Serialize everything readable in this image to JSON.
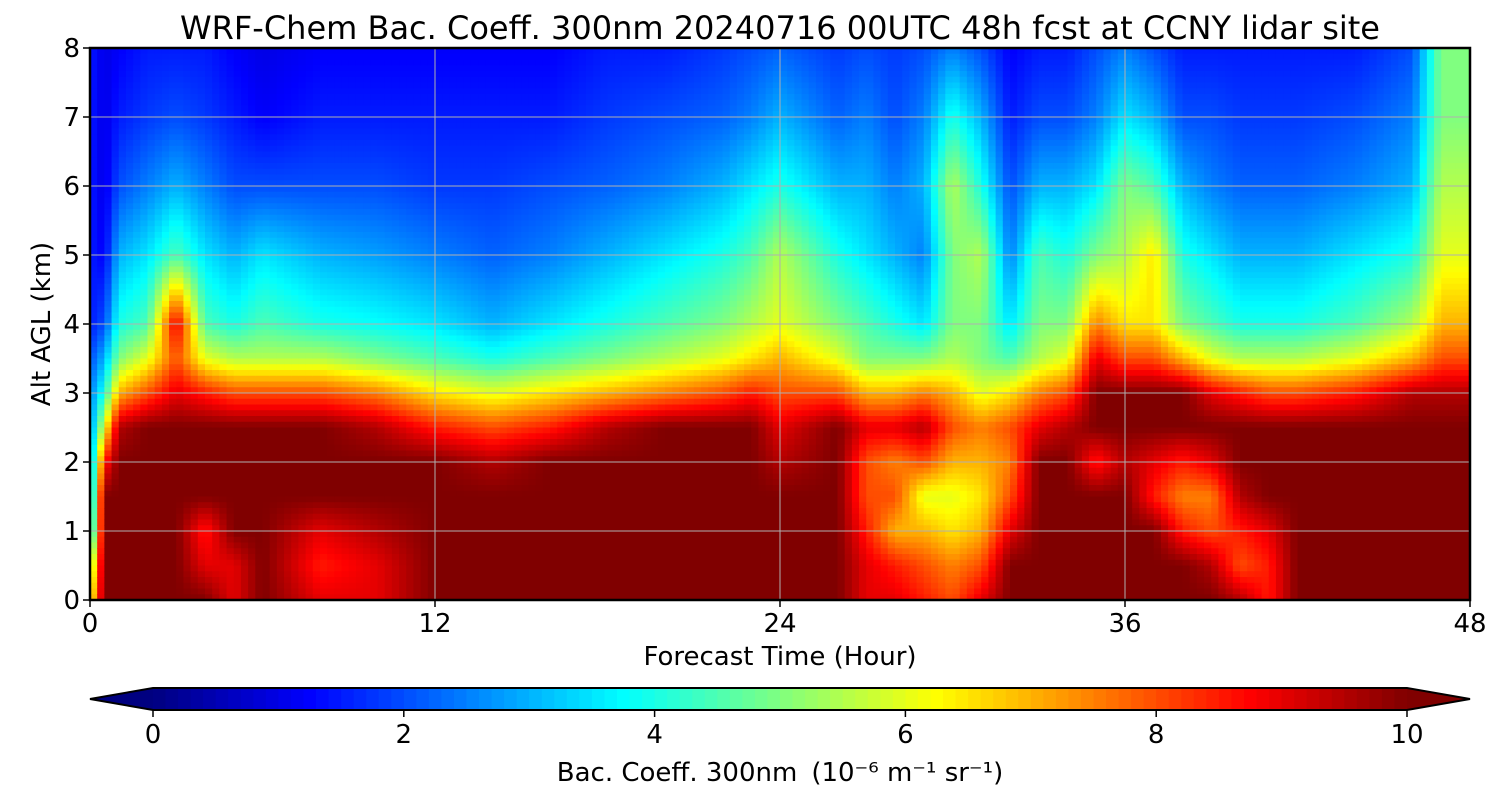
{
  "chart_data": {
    "type": "heatmap",
    "title": "WRF-Chem Bac. Coeff. 300nm  20240716 00UTC 48h fcst at CCNY lidar site",
    "xlabel": "Forecast Time (Hour)",
    "ylabel": "Alt AGL (km)",
    "xlim": [
      0,
      48
    ],
    "ylim": [
      0,
      8
    ],
    "xticks": [
      0,
      12,
      24,
      36,
      48
    ],
    "yticks": [
      0,
      1,
      2,
      3,
      4,
      5,
      6,
      7,
      8
    ],
    "grid": true,
    "colormap": "jet",
    "colorbar": {
      "label": "Bac. Coeff. 300nm",
      "units": "(10⁻⁶ m⁻¹ sr⁻¹)",
      "range": [
        0,
        10
      ],
      "ticks": [
        0,
        2,
        4,
        6,
        8,
        10
      ],
      "extend": "both",
      "placement": "bottom"
    },
    "profiles": {
      "time": [
        0,
        0.5,
        1,
        2,
        3,
        4,
        5,
        6,
        8,
        10,
        12,
        14,
        16,
        18,
        20,
        22,
        23,
        24,
        26,
        27,
        28,
        29,
        30,
        31,
        32,
        33,
        34,
        35,
        36,
        37,
        38,
        39,
        40,
        41,
        42,
        44,
        46,
        47,
        48
      ],
      "altitude_km": [
        0,
        0.5,
        1,
        1.5,
        2,
        2.5,
        3,
        3.5,
        4,
        5,
        6,
        7,
        8
      ],
      "values": [
        [
          6,
          5,
          3,
          2.5,
          2.5,
          2.5,
          2.5,
          2,
          1.5,
          1.5,
          1.5,
          1.5,
          1.5
        ],
        [
          10,
          10,
          10,
          10,
          8.5,
          6,
          4,
          3,
          2,
          1.2,
          1,
          1,
          1
        ],
        [
          10,
          10,
          10,
          10,
          10,
          9.5,
          7,
          5,
          4,
          3,
          2,
          1.5,
          1.2
        ],
        [
          10,
          10,
          10,
          10,
          10,
          10,
          8,
          6,
          4.5,
          3.5,
          2.5,
          1.8,
          1.5
        ],
        [
          10,
          10,
          10,
          10,
          10,
          10,
          9,
          8,
          9,
          4.5,
          3,
          2,
          1.5
        ],
        [
          10,
          9,
          8.5,
          10,
          10,
          10,
          8.5,
          6,
          4.5,
          3.5,
          2.5,
          1.8,
          1.5
        ],
        [
          9,
          9,
          10,
          10,
          10,
          10,
          8,
          5.5,
          4,
          3,
          2,
          1.5,
          1.2
        ],
        [
          10,
          10,
          10,
          10,
          10,
          10,
          8,
          5.5,
          4.5,
          3.5,
          2,
          1.2,
          1
        ],
        [
          9,
          8.5,
          9,
          10,
          10,
          10,
          8,
          5.5,
          4,
          3,
          2,
          1.5,
          1.2
        ],
        [
          9,
          9,
          9.5,
          10,
          10,
          9.5,
          7.5,
          5,
          3.8,
          2.8,
          2,
          1.5,
          1.2
        ],
        [
          10,
          10,
          10,
          10,
          10,
          8.5,
          6.5,
          4.5,
          3.5,
          2.5,
          1.8,
          1.5,
          1.2
        ],
        [
          10,
          10,
          10,
          10,
          9.5,
          8,
          6,
          4,
          3,
          2.2,
          1.8,
          1.5,
          1.2
        ],
        [
          10,
          10,
          10,
          10,
          10,
          8.5,
          6.5,
          4.5,
          3.5,
          2.5,
          2,
          1.5,
          1.2
        ],
        [
          10,
          10,
          10,
          10,
          10,
          9.5,
          7,
          5,
          4,
          3,
          2.2,
          1.8,
          1.5
        ],
        [
          10,
          10,
          10,
          10,
          10,
          10,
          7.5,
          5.5,
          4.5,
          3.5,
          2.5,
          2,
          1.5
        ],
        [
          10,
          10,
          10,
          10,
          10,
          10,
          8,
          6,
          5,
          4,
          3,
          2.2,
          1.8
        ],
        [
          10,
          10,
          10,
          10,
          10,
          10,
          8.5,
          6.5,
          5.5,
          4.5,
          3.5,
          2.5,
          2
        ],
        [
          10,
          10,
          10,
          10,
          9.5,
          9,
          8,
          7,
          6,
          5.5,
          4,
          3,
          2.2
        ],
        [
          10,
          10,
          10,
          10,
          10,
          10,
          8,
          6,
          5,
          4,
          3,
          2.2,
          1.8
        ],
        [
          9,
          9,
          8.5,
          8,
          8,
          9,
          7,
          5,
          4.5,
          3.5,
          3,
          2.5,
          2
        ],
        [
          9,
          8.5,
          7,
          8,
          7.5,
          9,
          7,
          5,
          4,
          3,
          2.5,
          2,
          1.8
        ],
        [
          8.5,
          8,
          7,
          6,
          8,
          9.5,
          7.5,
          5,
          3.5,
          2.5,
          3,
          2.5,
          2
        ],
        [
          8,
          7.5,
          6.5,
          6,
          7,
          8,
          7,
          5.5,
          5,
          5,
          5.5,
          4,
          2.5
        ],
        [
          9,
          8,
          7,
          6.5,
          7,
          7.5,
          6,
          5,
          5,
          5.5,
          4,
          3,
          2
        ],
        [
          10,
          10,
          9,
          8,
          7.5,
          8,
          6.5,
          4.5,
          3.5,
          2.5,
          2,
          1.5,
          1.2
        ],
        [
          10,
          10,
          10,
          10,
          10,
          9,
          7.5,
          5.5,
          5,
          4.5,
          3,
          2,
          1.5
        ],
        [
          10,
          10,
          10,
          10,
          10,
          9.5,
          8,
          6,
          5,
          4,
          3,
          2,
          1.5
        ],
        [
          10,
          10,
          10,
          10,
          8.5,
          10,
          10,
          9,
          7.5,
          5,
          3.5,
          2.5,
          2
        ],
        [
          10,
          10,
          10,
          10,
          9.5,
          10,
          10,
          8,
          6.5,
          5.5,
          5,
          3.5,
          2.5
        ],
        [
          10,
          10,
          10,
          8.5,
          9,
          10,
          10,
          8,
          6.5,
          6.5,
          4.5,
          3,
          2
        ],
        [
          10,
          10,
          8.5,
          7.5,
          8.5,
          10,
          10,
          7,
          5,
          4,
          3,
          2,
          1.5
        ],
        [
          10,
          9.5,
          8,
          7.5,
          9,
          10,
          9,
          6,
          4.5,
          3.5,
          2.5,
          2,
          1.5
        ],
        [
          9.5,
          8,
          8.5,
          9.5,
          10,
          10,
          8.5,
          5.5,
          4,
          3,
          2.2,
          1.8,
          1.5
        ],
        [
          8.5,
          8.5,
          9,
          10,
          10,
          10,
          8,
          5.5,
          4,
          3,
          2.2,
          1.8,
          1.5
        ],
        [
          10,
          10,
          10,
          10,
          10,
          10,
          8,
          5.5,
          4,
          3,
          2.2,
          1.8,
          1.5
        ],
        [
          10,
          10,
          10,
          10,
          10,
          10,
          8.5,
          6,
          4.5,
          3.5,
          2.5,
          2,
          1.5
        ],
        [
          10,
          10,
          10,
          10,
          10,
          10,
          9.5,
          7,
          5.5,
          4,
          3,
          2.5,
          2
        ],
        [
          10,
          10,
          10,
          10,
          10,
          10,
          9.5,
          8,
          7,
          6,
          5.5,
          5,
          5
        ],
        [
          10,
          10,
          10,
          10,
          10,
          10,
          9.5,
          8,
          7,
          6,
          5.5,
          5,
          5
        ]
      ]
    }
  }
}
